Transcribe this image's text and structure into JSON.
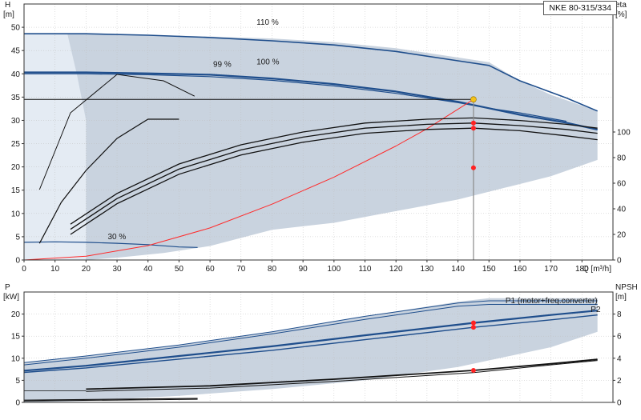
{
  "pump_model": "NKE 80-315/334",
  "colors": {
    "envelope": "#c9d3df",
    "envelope_light": "#e4ebf3",
    "curve_blue": "#1f4e8c",
    "curve_black": "#111111",
    "system_curve": "#ff2a2a",
    "duty_point": "#f4c21a",
    "marker": "#ff2222",
    "grid": "#bfbfbf"
  },
  "chart_data": [
    {
      "id": "head",
      "type": "line",
      "ylabel": "H",
      "yunit": "[m]",
      "y2label": "eta",
      "y2unit": "[%]",
      "xlabel": "Q [m³/h]",
      "xlim": [
        0,
        190
      ],
      "ylim": [
        0,
        55
      ],
      "y2lim": [
        0,
        200
      ],
      "xticks": [
        0,
        10,
        20,
        30,
        40,
        50,
        60,
        70,
        80,
        90,
        100,
        110,
        120,
        130,
        140,
        150,
        160,
        170,
        180
      ],
      "yticks": [
        0,
        5,
        10,
        15,
        20,
        25,
        30,
        35,
        40,
        45,
        50
      ],
      "y2ticks": [
        0,
        20,
        40,
        60,
        80,
        100
      ],
      "grid": true,
      "duty_point": {
        "x": 145,
        "y": 34.5
      },
      "speed_labels": [
        {
          "text": "110 %",
          "x": 75,
          "y": 50.5
        },
        {
          "text": "99 %",
          "x": 61,
          "y": 41.5
        },
        {
          "text": "100 %",
          "x": 75,
          "y": 42.0
        },
        {
          "text": "30 %",
          "x": 27,
          "y": 4.5
        }
      ],
      "envelope": {
        "x": [
          0,
          20,
          50,
          80,
          100,
          120,
          140,
          150,
          160,
          170,
          185,
          185,
          170,
          155,
          140,
          120,
          100,
          80,
          60,
          45,
          30,
          20,
          10,
          0
        ],
        "y": [
          48.5,
          48.6,
          48.2,
          47.6,
          46.8,
          45.5,
          43.5,
          42.5,
          38.5,
          35.5,
          32.0,
          21.5,
          18.0,
          15.5,
          13.0,
          10.5,
          8.0,
          6.5,
          3.0,
          1.5,
          0.5,
          0,
          0,
          0
        ]
      },
      "envelope_light": {
        "x": [
          0,
          14,
          17,
          20,
          20,
          0
        ],
        "y": [
          48.5,
          48.5,
          40.0,
          30.0,
          0,
          0
        ]
      },
      "series": [
        {
          "role": "speed-110",
          "color": "blue",
          "width": 1.6,
          "x": [
            0,
            20,
            40,
            60,
            80,
            100,
            120,
            140,
            150,
            160,
            175,
            185
          ],
          "y": [
            48.6,
            48.6,
            48.3,
            47.8,
            47.1,
            46.2,
            44.8,
            42.8,
            41.8,
            38.5,
            34.8,
            32.0
          ]
        },
        {
          "role": "speed-100",
          "color": "blue",
          "width": 2.2,
          "x": [
            0,
            20,
            40,
            60,
            80,
            100,
            120,
            140,
            150,
            160,
            175,
            185
          ],
          "y": [
            40.3,
            40.3,
            40.1,
            39.8,
            39.0,
            37.8,
            36.2,
            34.0,
            32.6,
            31.2,
            29.5,
            28.0
          ]
        },
        {
          "role": "speed-99",
          "color": "blue",
          "width": 1.2,
          "x": [
            0,
            20,
            40,
            60,
            80,
            100,
            120,
            140,
            150,
            160,
            175
          ],
          "y": [
            40.0,
            40.0,
            39.8,
            39.4,
            38.6,
            37.4,
            35.8,
            33.8,
            32.6,
            31.6,
            29.8
          ]
        },
        {
          "role": "min-speed",
          "color": "blue",
          "width": 1.2,
          "x": [
            0,
            10,
            20,
            30,
            40,
            50,
            56
          ],
          "y": [
            3.8,
            3.9,
            3.8,
            3.6,
            3.3,
            2.8,
            2.7
          ]
        },
        {
          "role": "duty-line",
          "color": "black",
          "width": 1.0,
          "x": [
            0,
            145
          ],
          "y": [
            34.5,
            34.5
          ]
        },
        {
          "role": "system-curve",
          "color": "red",
          "width": 1.0,
          "x": [
            0,
            20,
            40,
            60,
            80,
            100,
            120,
            130,
            145
          ],
          "y": [
            0,
            0.8,
            3.1,
            6.9,
            12.0,
            17.8,
            24.5,
            28.2,
            34.5
          ]
        }
      ],
      "efficiency_series": [
        {
          "role": "eta-110",
          "width": 1.0,
          "x": [
            5,
            15,
            30,
            45,
            55
          ],
          "y": [
            55,
            115,
            145,
            140,
            128
          ]
        },
        {
          "role": "eta-100a",
          "width": 1.2,
          "x": [
            5,
            12,
            20,
            30,
            40,
            50
          ],
          "y": [
            13,
            45,
            70,
            95,
            110,
            110
          ]
        },
        {
          "role": "eta-100b",
          "width": 1.3,
          "x": [
            15,
            30,
            50,
            70,
            90,
            110,
            130,
            145,
            160,
            175,
            185
          ],
          "y": [
            28,
            52,
            75,
            90,
            100,
            107,
            110,
            111,
            109,
            106,
            103
          ]
        },
        {
          "role": "eta-100c",
          "width": 1.3,
          "x": [
            15,
            30,
            50,
            70,
            90,
            110,
            130,
            145,
            160,
            175,
            185
          ],
          "y": [
            24,
            48,
            71,
            86,
            96,
            103,
            106,
            107,
            105,
            102,
            99
          ]
        },
        {
          "role": "eta-99",
          "width": 1.3,
          "x": [
            15,
            30,
            50,
            70,
            90,
            110,
            130,
            145,
            160,
            175,
            185
          ],
          "y": [
            20,
            44,
            67,
            82,
            92,
            99,
            102,
            103,
            101,
            97,
            94
          ]
        }
      ],
      "markers": [
        {
          "x": 145,
          "y2": 107
        },
        {
          "x": 145,
          "y2": 103
        },
        {
          "x": 145,
          "y2": 72
        }
      ]
    },
    {
      "id": "power",
      "type": "line",
      "ylabel": "P",
      "yunit": "[kW]",
      "y2label": "NPSH",
      "y2unit": "[m]",
      "xlim": [
        0,
        190
      ],
      "ylim": [
        0,
        25
      ],
      "y2lim": [
        0,
        10
      ],
      "yticks": [
        0,
        5,
        10,
        15,
        20
      ],
      "y2ticks": [
        0,
        2,
        4,
        6,
        8
      ],
      "grid": true,
      "series_labels": [
        {
          "text": "P1 (motor+freq.converter)",
          "x": 185,
          "y": 22.5
        },
        {
          "text": "P2",
          "x": 186,
          "y": 20.5
        }
      ],
      "envelope": {
        "x": [
          0,
          20,
          50,
          80,
          110,
          140,
          150,
          185,
          185,
          170,
          140,
          110,
          80,
          50,
          20,
          0
        ],
        "y": [
          9.0,
          10.5,
          13.0,
          16.0,
          19.5,
          22.8,
          23.6,
          23.6,
          16.0,
          12.5,
          8.0,
          5.0,
          3.0,
          1.5,
          0.3,
          0
        ]
      },
      "series": [
        {
          "role": "P1-110",
          "color": "blue",
          "width": 1.0,
          "x": [
            0,
            20,
            50,
            80,
            110,
            140,
            150,
            185
          ],
          "y": [
            9.0,
            10.5,
            13.0,
            16.0,
            19.5,
            22.5,
            23.0,
            23.0
          ]
        },
        {
          "role": "P2-110",
          "color": "blue",
          "width": 1.0,
          "x": [
            0,
            20,
            50,
            80,
            110,
            140,
            150,
            185
          ],
          "y": [
            8.5,
            10.0,
            12.5,
            15.5,
            18.8,
            21.8,
            22.2,
            22.2
          ]
        },
        {
          "role": "P1-100",
          "color": "blue",
          "width": 2.2,
          "x": [
            0,
            20,
            50,
            80,
            110,
            145,
            170,
            185
          ],
          "y": [
            7.2,
            8.3,
            10.5,
            12.7,
            15.2,
            18.0,
            19.8,
            20.8
          ]
        },
        {
          "role": "P2-100",
          "color": "blue",
          "width": 1.4,
          "x": [
            0,
            20,
            50,
            80,
            110,
            145,
            170,
            185
          ],
          "y": [
            6.8,
            7.8,
            9.8,
            11.8,
            14.2,
            17.0,
            18.7,
            19.8
          ]
        },
        {
          "role": "P-min",
          "color": "black",
          "width": 1.2,
          "x": [
            0,
            56
          ],
          "y": [
            0.5,
            0.9
          ]
        },
        {
          "role": "P-min-b",
          "color": "black",
          "width": 1.0,
          "x": [
            0,
            56
          ],
          "y": [
            0.3,
            0.7
          ]
        },
        {
          "role": "low-line",
          "color": "black",
          "width": 0.8,
          "x": [
            0,
            20
          ],
          "y": [
            2.6,
            2.6
          ]
        }
      ],
      "npsh_series": [
        {
          "role": "npsh-a",
          "width": 1.8,
          "x": [
            20,
            60,
            100,
            145,
            170,
            185
          ],
          "y": [
            1.2,
            1.5,
            2.1,
            2.9,
            3.5,
            3.9
          ]
        },
        {
          "role": "npsh-b",
          "width": 1.0,
          "x": [
            20,
            60,
            100,
            145,
            170,
            185
          ],
          "y": [
            1.0,
            1.3,
            1.9,
            2.7,
            3.4,
            3.8
          ]
        }
      ],
      "markers": [
        {
          "x": 145,
          "y": 18.0
        },
        {
          "x": 145,
          "y": 17.0
        },
        {
          "x": 145,
          "y2": 2.9
        }
      ]
    }
  ]
}
